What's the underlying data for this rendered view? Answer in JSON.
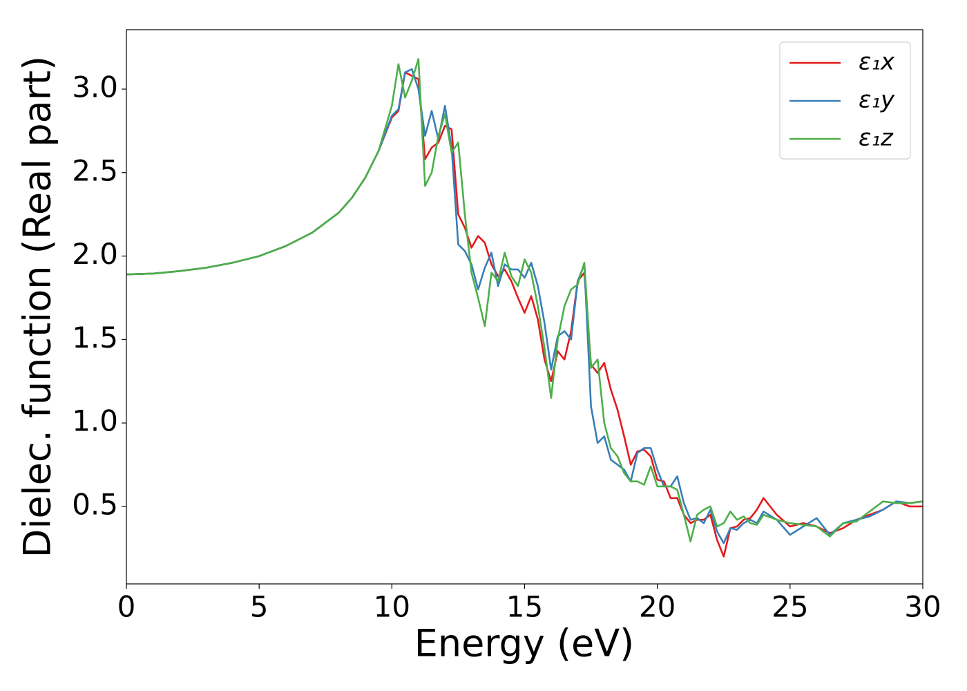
{
  "chart_data": {
    "type": "line",
    "x_label": "Energy (eV)",
    "y_label": "Dielec. function (Real part)",
    "x": [
      0,
      1,
      2,
      3,
      4,
      5,
      6,
      7,
      8,
      8.5,
      9,
      9.5,
      10,
      10.25,
      10.5,
      10.75,
      11,
      11.25,
      11.5,
      11.75,
      12,
      12.25,
      12.5,
      12.75,
      13,
      13.25,
      13.5,
      13.75,
      14,
      14.25,
      14.5,
      14.75,
      15,
      15.25,
      15.5,
      15.75,
      16,
      16.25,
      16.5,
      16.75,
      17,
      17.25,
      17.5,
      17.75,
      18,
      18.25,
      18.5,
      18.75,
      19,
      19.25,
      19.5,
      19.75,
      20,
      20.25,
      20.5,
      20.75,
      21,
      21.25,
      21.5,
      21.75,
      22,
      22.25,
      22.5,
      22.75,
      23,
      23.25,
      23.5,
      23.75,
      24,
      24.5,
      25,
      25.5,
      26,
      26.5,
      27,
      27.5,
      28,
      28.5,
      29,
      29.5,
      30
    ],
    "series": [
      {
        "name": "ε₁x",
        "color": "#e41a1c",
        "values": [
          1.89,
          1.895,
          1.91,
          1.93,
          1.96,
          2.0,
          2.06,
          2.14,
          2.26,
          2.35,
          2.47,
          2.63,
          2.83,
          2.87,
          3.1,
          3.08,
          3.06,
          2.58,
          2.65,
          2.68,
          2.78,
          2.76,
          2.25,
          2.17,
          2.05,
          2.12,
          2.08,
          1.95,
          1.88,
          1.92,
          1.85,
          1.75,
          1.66,
          1.76,
          1.62,
          1.38,
          1.25,
          1.43,
          1.38,
          1.55,
          1.85,
          1.9,
          1.35,
          1.3,
          1.36,
          1.2,
          1.08,
          0.92,
          0.75,
          0.83,
          0.84,
          0.8,
          0.66,
          0.65,
          0.55,
          0.55,
          0.45,
          0.4,
          0.42,
          0.42,
          0.45,
          0.3,
          0.2,
          0.37,
          0.38,
          0.42,
          0.43,
          0.48,
          0.55,
          0.45,
          0.38,
          0.4,
          0.38,
          0.34,
          0.37,
          0.42,
          0.45,
          0.48,
          0.53,
          0.5,
          0.5
        ]
      },
      {
        "name": "ε₁y",
        "color": "#377eb8",
        "values": [
          1.89,
          1.895,
          1.91,
          1.93,
          1.96,
          2.0,
          2.06,
          2.14,
          2.26,
          2.35,
          2.47,
          2.63,
          2.84,
          2.88,
          3.1,
          3.12,
          3.0,
          2.72,
          2.87,
          2.7,
          2.9,
          2.65,
          2.07,
          2.03,
          1.95,
          1.8,
          1.93,
          2.02,
          1.82,
          1.95,
          1.92,
          1.92,
          1.87,
          1.96,
          1.82,
          1.6,
          1.32,
          1.52,
          1.55,
          1.5,
          1.85,
          1.95,
          1.1,
          0.88,
          0.92,
          0.78,
          0.75,
          0.72,
          0.65,
          0.82,
          0.85,
          0.85,
          0.72,
          0.62,
          0.62,
          0.68,
          0.52,
          0.42,
          0.43,
          0.4,
          0.48,
          0.35,
          0.28,
          0.37,
          0.36,
          0.4,
          0.42,
          0.4,
          0.47,
          0.42,
          0.33,
          0.38,
          0.43,
          0.33,
          0.4,
          0.42,
          0.44,
          0.48,
          0.53,
          0.52,
          0.53
        ]
      },
      {
        "name": "ε₁z",
        "color": "#4daf4a",
        "values": [
          1.89,
          1.895,
          1.91,
          1.93,
          1.96,
          2.0,
          2.06,
          2.14,
          2.26,
          2.35,
          2.47,
          2.63,
          2.9,
          3.15,
          2.95,
          3.05,
          3.18,
          2.42,
          2.5,
          2.72,
          2.85,
          2.62,
          2.68,
          2.25,
          1.9,
          1.75,
          1.58,
          1.9,
          1.85,
          2.02,
          1.88,
          1.82,
          1.98,
          1.9,
          1.7,
          1.45,
          1.15,
          1.5,
          1.7,
          1.8,
          1.83,
          1.96,
          1.33,
          1.38,
          1.0,
          0.85,
          0.8,
          0.7,
          0.65,
          0.65,
          0.63,
          0.74,
          0.62,
          0.62,
          0.62,
          0.6,
          0.45,
          0.29,
          0.45,
          0.48,
          0.5,
          0.38,
          0.4,
          0.47,
          0.42,
          0.44,
          0.4,
          0.39,
          0.45,
          0.42,
          0.4,
          0.39,
          0.38,
          0.32,
          0.4,
          0.41,
          0.47,
          0.53,
          0.52,
          0.52,
          0.53
        ]
      }
    ],
    "xlim": [
      0,
      30
    ],
    "ylim": [
      0.036,
      3.356
    ],
    "xticks": [
      0,
      5,
      10,
      15,
      20,
      25,
      30
    ],
    "yticks": [
      0.5,
      {
        "value": 1,
        "label": "1.0"
      },
      1.5,
      {
        "value": 2,
        "label": "2.0"
      },
      2.5,
      {
        "value": 3,
        "label": "3.0"
      }
    ],
    "grid": false,
    "legend": "upper right"
  }
}
